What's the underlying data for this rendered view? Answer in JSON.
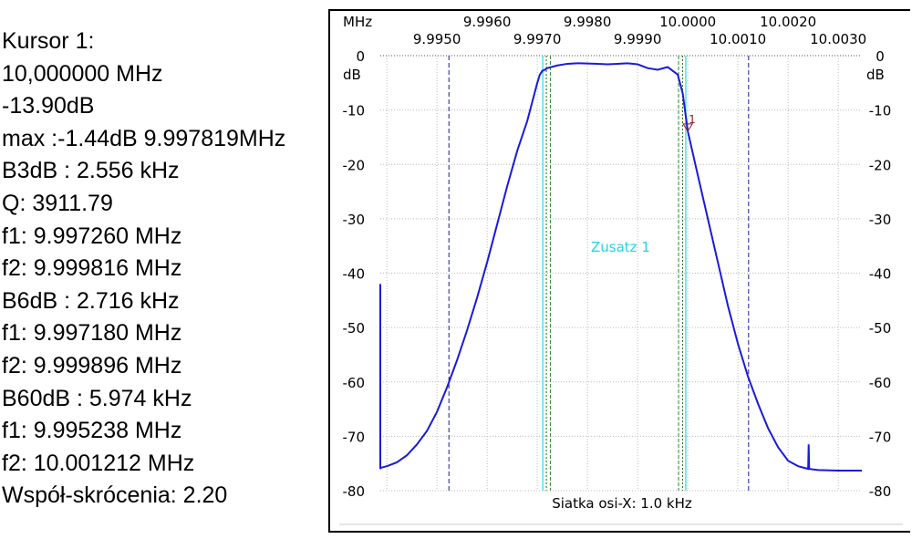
{
  "readout": {
    "lines": [
      "Kursor 1:",
      "10,000000 MHz",
      " -13.90dB",
      "max :-1.44dB 9.997819MHz",
      "B3dB : 2.556 kHz",
      "Q: 3911.79",
      "f1: 9.997260 MHz",
      "f2: 9.999816 MHz",
      "B6dB : 2.716 kHz",
      "f1: 9.997180 MHz",
      "f2: 9.999896 MHz",
      "B60dB : 5.974 kHz",
      "f1: 9.995238 MHz",
      "f2: 10.001212 MHz",
      "Współ-skrócenia: 2.20"
    ]
  },
  "chart_data": {
    "type": "line",
    "x_unit_label": "MHz",
    "y_unit_label": "dB",
    "xlim": [
      9.99387,
      10.00347
    ],
    "ylim": [
      -80,
      0
    ],
    "x_ticks_upper": [
      "9.9960",
      "9.9980",
      "10.0000",
      "10.0020"
    ],
    "x_ticks_lower": [
      "9.9950",
      "9.9970",
      "9.9990",
      "10.0010",
      "10.0030"
    ],
    "y_ticks": [
      0,
      -10,
      -20,
      -30,
      -40,
      -50,
      -60,
      -70,
      -80
    ],
    "grid_x_step_mhz": 0.001,
    "footer": "Siatka osi-X: 1.0 kHz",
    "annotation": "Zusatz 1",
    "marker": {
      "label": "1",
      "x": 10.0,
      "y": -13.9
    },
    "b3_lines": [
      9.99726,
      9.999816
    ],
    "b6_lines": [
      9.99718,
      9.999896
    ],
    "b60_lines": [
      9.995238,
      10.001212
    ],
    "cyan_lines": [
      9.99711,
      9.99996
    ],
    "series": [
      {
        "name": "response",
        "color": "#1a1ad8",
        "x": [
          9.99387,
          9.99387,
          9.99388,
          9.994,
          9.9942,
          9.9944,
          9.9946,
          9.9948,
          9.995,
          9.9952,
          9.9954,
          9.9956,
          9.9958,
          9.996,
          9.9962,
          9.9964,
          9.9966,
          9.9968,
          9.9969,
          9.997,
          9.99705,
          9.9971,
          9.99715,
          9.9972,
          9.9974,
          9.9976,
          9.9978,
          9.998,
          9.9982,
          9.9984,
          9.9986,
          9.9988,
          9.999,
          9.9992,
          9.9994,
          9.9996,
          9.9998,
          9.9999,
          10.0,
          10.0002,
          10.0004,
          10.0006,
          10.0008,
          10.001,
          10.0012,
          10.0014,
          10.0016,
          10.0018,
          10.002,
          10.0022,
          10.0024,
          10.00241,
          10.00242,
          10.0026,
          10.003,
          10.00347
        ],
        "y": [
          -42,
          -76,
          -75.8,
          -75.5,
          -74.8,
          -73.5,
          -71.5,
          -69,
          -65.5,
          -61,
          -56,
          -50.5,
          -44.5,
          -38,
          -31,
          -24,
          -17.5,
          -12,
          -8.5,
          -5,
          -3.5,
          -2.8,
          -2.6,
          -2.3,
          -1.8,
          -1.5,
          -1.4,
          -1.45,
          -1.5,
          -1.6,
          -1.5,
          -1.4,
          -1.6,
          -2.3,
          -2.6,
          -2.1,
          -3.5,
          -7,
          -13.9,
          -22,
          -30,
          -38,
          -46,
          -53,
          -59,
          -64,
          -68.5,
          -72,
          -74.5,
          -75.5,
          -76,
          -71.5,
          -76,
          -76.2,
          -76.3,
          -76.3
        ]
      }
    ]
  }
}
